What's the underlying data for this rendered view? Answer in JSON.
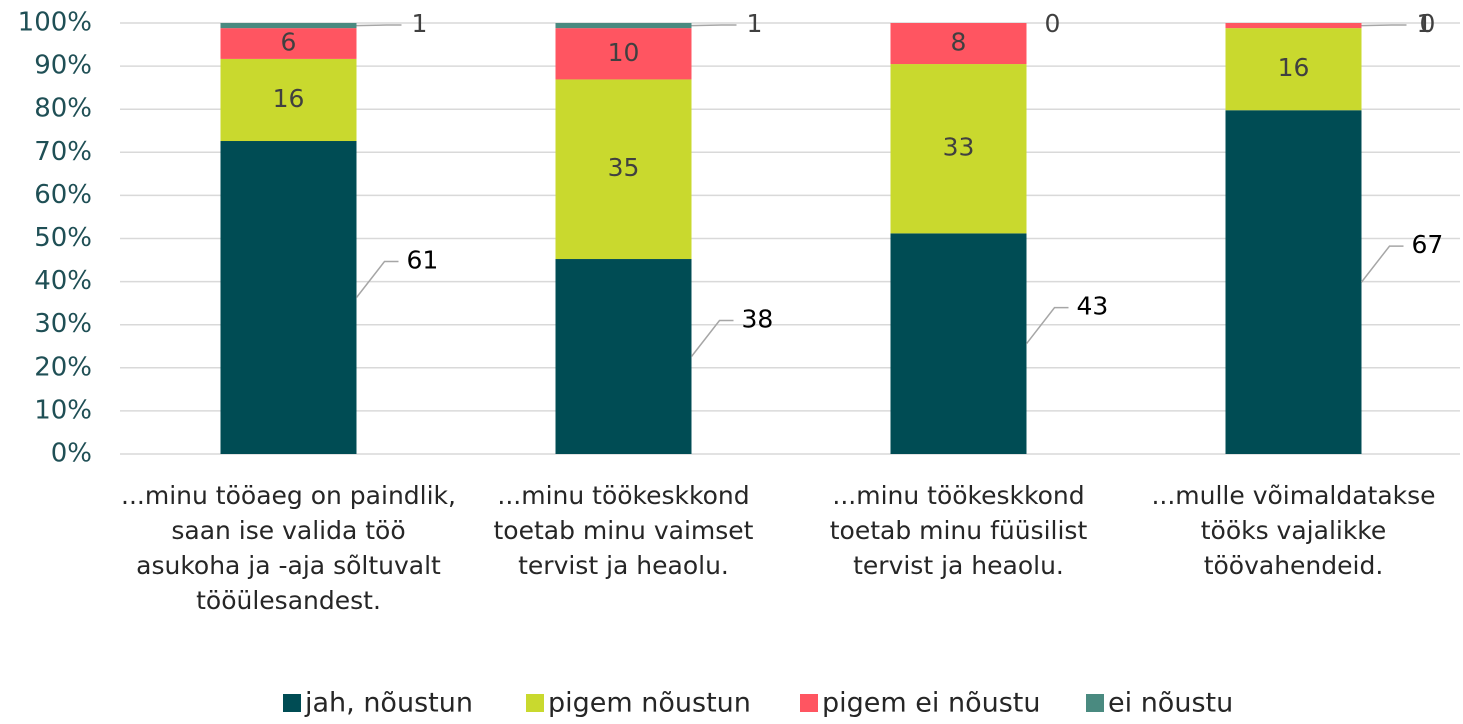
{
  "chart_data": {
    "type": "bar",
    "stacking": "percent",
    "categories": [
      "...minu tööaeg on paindlik, saan ise valida töö asukoha ja -aja sõltuvalt tööülesandest.",
      "...minu töökeskkond toetab minu vaimset tervist ja heaolu.",
      "...minu töökeskkond toetab minu füüsilist tervist ja heaolu.",
      "...mulle võimaldatakse tööks vajalikke töövahendeid."
    ],
    "series": [
      {
        "name": "jah, nõustun",
        "color": "#004c54",
        "values": [
          61,
          38,
          43,
          67
        ]
      },
      {
        "name": "pigem nõustun",
        "color": "#c9d92e",
        "values": [
          16,
          35,
          33,
          16
        ]
      },
      {
        "name": "pigem ei nõustu",
        "color": "#ff5561",
        "values": [
          6,
          10,
          8,
          1
        ]
      },
      {
        "name": "ei nõustu",
        "color": "#4a8a80",
        "values": [
          1,
          1,
          0,
          0
        ]
      }
    ],
    "ylim": [
      0,
      100
    ],
    "yticks": [
      {
        "value": 0,
        "label": "0%"
      },
      {
        "value": 10,
        "label": "10%"
      },
      {
        "value": 20,
        "label": "20%"
      },
      {
        "value": 30,
        "label": "30%"
      },
      {
        "value": 40,
        "label": "40%"
      },
      {
        "value": 50,
        "label": "50%"
      },
      {
        "value": 60,
        "label": "60%"
      },
      {
        "value": 70,
        "label": "70%"
      },
      {
        "value": 80,
        "label": "80%"
      },
      {
        "value": 90,
        "label": "90%"
      },
      {
        "value": 100,
        "label": "100%"
      }
    ],
    "grid": true,
    "legend": "bottom"
  }
}
